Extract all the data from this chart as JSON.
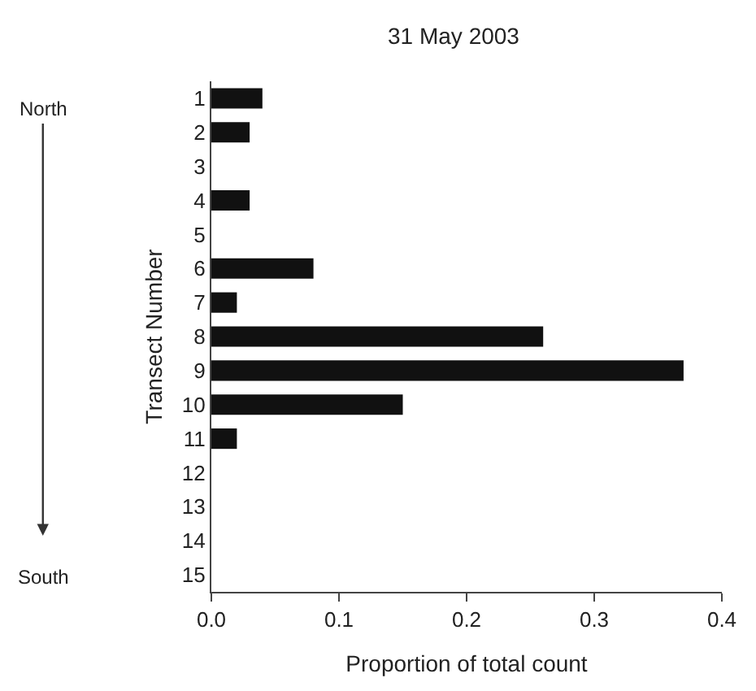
{
  "chart_data": {
    "type": "bar",
    "orientation": "horizontal",
    "title": "31 May 2003",
    "xlabel": "Proportion of total count",
    "ylabel": "Transect Number",
    "categories": [
      "1",
      "2",
      "3",
      "4",
      "5",
      "6",
      "7",
      "8",
      "9",
      "10",
      "11",
      "12",
      "13",
      "14",
      "15"
    ],
    "values": [
      0.04,
      0.03,
      0,
      0.03,
      0,
      0.08,
      0.02,
      0.26,
      0.37,
      0.15,
      0.02,
      0,
      0,
      0,
      0
    ],
    "color": "#111111",
    "xlim": [
      0,
      0.4
    ],
    "xticks": [
      {
        "value": 0,
        "label": "0.0"
      },
      0.1,
      0.2,
      0.3,
      0.4
    ],
    "annotations": [
      "North",
      "South"
    ]
  }
}
